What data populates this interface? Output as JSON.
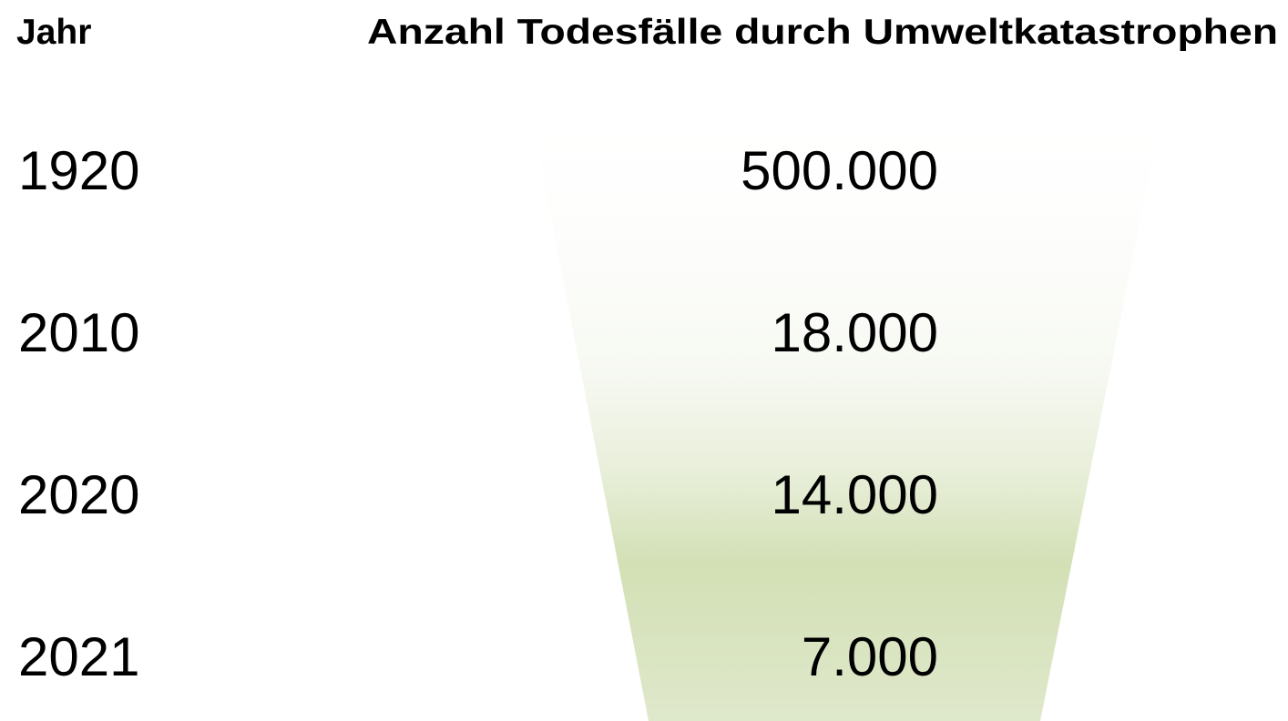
{
  "table": {
    "header": [
      "Jahr",
      "Anzahl Todesfälle durch Umweltkatastrophen"
    ],
    "rows": [
      [
        "1920",
        "500.000"
      ],
      [
        "2010",
        "18.000"
      ],
      [
        "2020",
        "14.000"
      ],
      [
        "2021",
        "7.000"
      ]
    ]
  }
}
